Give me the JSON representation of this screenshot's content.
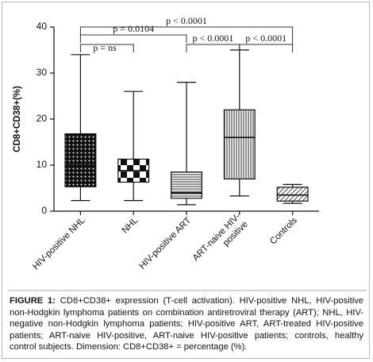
{
  "chart_data": {
    "type": "box",
    "y_label": "CD8+CD38+(%)",
    "categories": [
      "HIV-positive NHL",
      "NHL",
      "HIV-positive ART",
      "ART-naive HIV-positive",
      "Controls"
    ],
    "boxes": [
      {
        "min": 2.3,
        "q1": 5.3,
        "median": 10,
        "q3": 16.8,
        "max": 34
      },
      {
        "min": 2.3,
        "q1": 6.3,
        "median": 8.8,
        "q3": 11.3,
        "max": 26
      },
      {
        "min": 1.4,
        "q1": 2.8,
        "median": 4,
        "q3": 8.5,
        "max": 28
      },
      {
        "min": 3.3,
        "q1": 7,
        "median": 16,
        "q3": 22,
        "max": 35
      },
      {
        "min": 1.7,
        "q1": 2.2,
        "median": 3.5,
        "q3": 5.2,
        "max": 5.8
      }
    ],
    "color": "#111111",
    "ylim": [
      0,
      40
    ],
    "yticks": [
      0,
      10,
      20,
      30,
      40
    ],
    "grid": false,
    "brackets": [
      {
        "label": "p = 0.0104",
        "from": "HIV-positive NHL",
        "to": "HIV-positive ART"
      },
      {
        "label": "p = ns",
        "from": "HIV-positive NHL",
        "to": "NHL"
      },
      {
        "label": "p < 0.0001",
        "from": "HIV-positive NHL",
        "to": "Controls"
      },
      {
        "label": "p < 0.0001",
        "from": "HIV-positive ART",
        "to": "ART-naive HIV-positive"
      },
      {
        "label": "p < 0.0001",
        "from": "ART-naive HIV-positive",
        "to": "Controls"
      }
    ]
  },
  "caption": {
    "label": "FIGURE 1:",
    "text": "CD8+CD38+ expression (T-cell activation). HIV-positive NHL, HIV-positive non-Hodgkin lymphoma patients on combination antiretroviral therapy (ART); NHL, HIV-negative non-Hodgkin lymphoma patients; HIV-positive ART, ART-treated HIV-positive patients; ART-naive HIV-positive, ART-naive HIV-positive patients; controls, healthy control subjects. Dimension: CD8+CD38+ = percentage (%)."
  }
}
